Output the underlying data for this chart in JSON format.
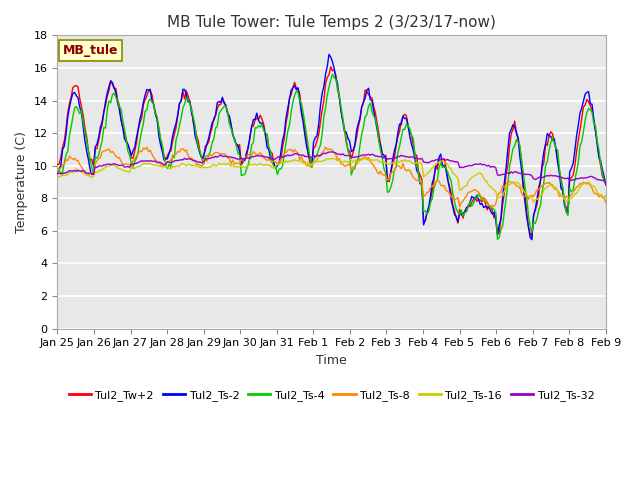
{
  "title": "MB Tule Tower: Tule Temps 2 (3/23/17-now)",
  "xlabel": "Time",
  "ylabel": "Temperature (C)",
  "ylim": [
    0,
    18
  ],
  "yticks": [
    0,
    2,
    4,
    6,
    8,
    10,
    12,
    14,
    16,
    18
  ],
  "background_color": "#ffffff",
  "plot_bg_color": "#e8e8e8",
  "grid_color": "#ffffff",
  "watermark": "MB_tule",
  "series_colors": {
    "Tul2_Tw+2": "#ff0000",
    "Tul2_Ts-2": "#0000ff",
    "Tul2_Ts-4": "#00cc00",
    "Tul2_Ts-8": "#ff8800",
    "Tul2_Ts-16": "#cccc00",
    "Tul2_Ts-32": "#9900cc"
  },
  "x_tick_labels": [
    "Jan 25",
    "Jan 26",
    "Jan 27",
    "Jan 28",
    "Jan 29",
    "Jan 30",
    "Jan 31",
    "Feb 1",
    "Feb 2",
    "Feb 3",
    "Feb 4",
    "Feb 5",
    "Feb 6",
    "Feb 7",
    "Feb 8",
    "Feb 9"
  ],
  "num_points": 320
}
